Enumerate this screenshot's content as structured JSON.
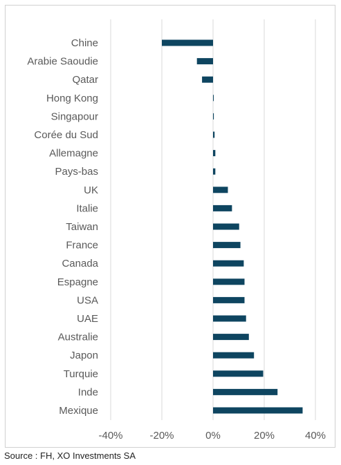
{
  "chart_data": {
    "type": "bar",
    "orientation": "horizontal",
    "title": "",
    "xlabel": "",
    "ylabel": "",
    "xlim": [
      -40,
      40
    ],
    "x_ticks": [
      -40,
      -20,
      0,
      20,
      40
    ],
    "x_tick_labels": [
      "-40%",
      "-20%",
      "0%",
      "20%",
      "40%"
    ],
    "grid": true,
    "bar_color": "#0e4560",
    "categories": [
      "Chine",
      "Arabie Saoudie",
      "Qatar",
      "Hong Kong",
      "Singapour",
      "Corée du Sud",
      "Allemagne",
      "Pays-bas",
      "UK",
      "Italie",
      "Taiwan",
      "France",
      "Canada",
      "Espagne",
      "USA",
      "UAE",
      "Australie",
      "Japon",
      "Turquie",
      "Inde",
      "Mexique"
    ],
    "values": [
      -20.0,
      -6.3,
      -4.3,
      0.2,
      0.3,
      0.6,
      0.9,
      0.9,
      5.8,
      7.4,
      10.2,
      10.7,
      12.0,
      12.3,
      12.3,
      12.9,
      14.0,
      16.0,
      19.6,
      25.2,
      35.0
    ]
  },
  "source": "Source : FH, XO Investments SA"
}
